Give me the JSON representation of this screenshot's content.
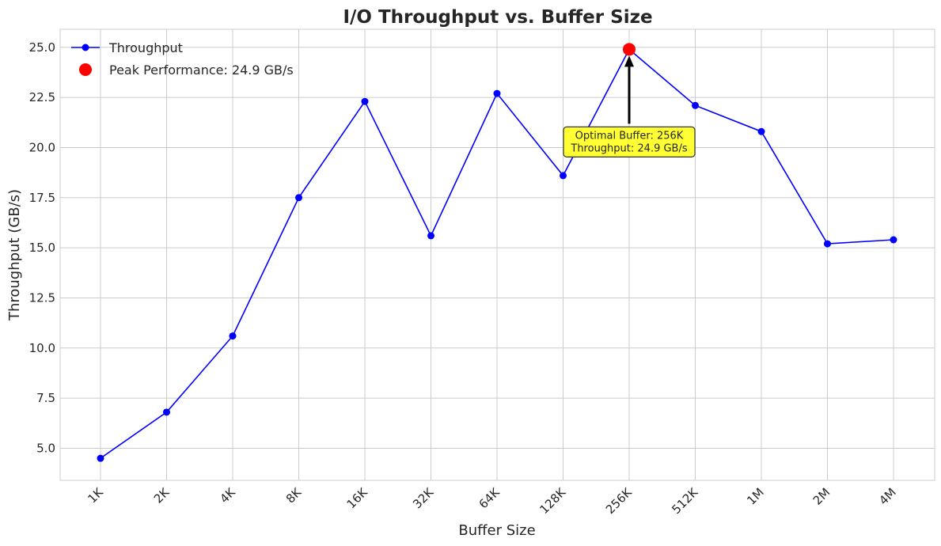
{
  "chart_data": {
    "type": "line",
    "title": "I/O Throughput vs. Buffer Size",
    "xlabel": "Buffer Size",
    "ylabel": "Throughput (GB/s)",
    "categories": [
      "1K",
      "2K",
      "4K",
      "8K",
      "16K",
      "32K",
      "64K",
      "128K",
      "256K",
      "512K",
      "1M",
      "2M",
      "4M"
    ],
    "ylim": [
      3.4,
      25.9
    ],
    "yticks": [
      "5.0",
      "7.5",
      "10.0",
      "12.5",
      "15.0",
      "17.5",
      "20.0",
      "22.5",
      "25.0"
    ],
    "grid": true,
    "legend_position": "top-left",
    "series": [
      {
        "name": "Throughput",
        "color": "#0000ff",
        "values": [
          4.5,
          6.8,
          10.6,
          17.5,
          22.3,
          15.6,
          22.7,
          18.6,
          24.9,
          22.1,
          20.8,
          15.2,
          15.4
        ]
      }
    ],
    "peak": {
      "label": "Peak Performance: 24.9 GB/s",
      "category": "256K",
      "value": 24.9,
      "color": "#ff0000"
    },
    "annotation": {
      "line1": "Optimal Buffer: 256K",
      "line2": "Throughput: 24.9 GB/s",
      "box_color": "#ffff33",
      "text_y_value": 20.2
    }
  }
}
